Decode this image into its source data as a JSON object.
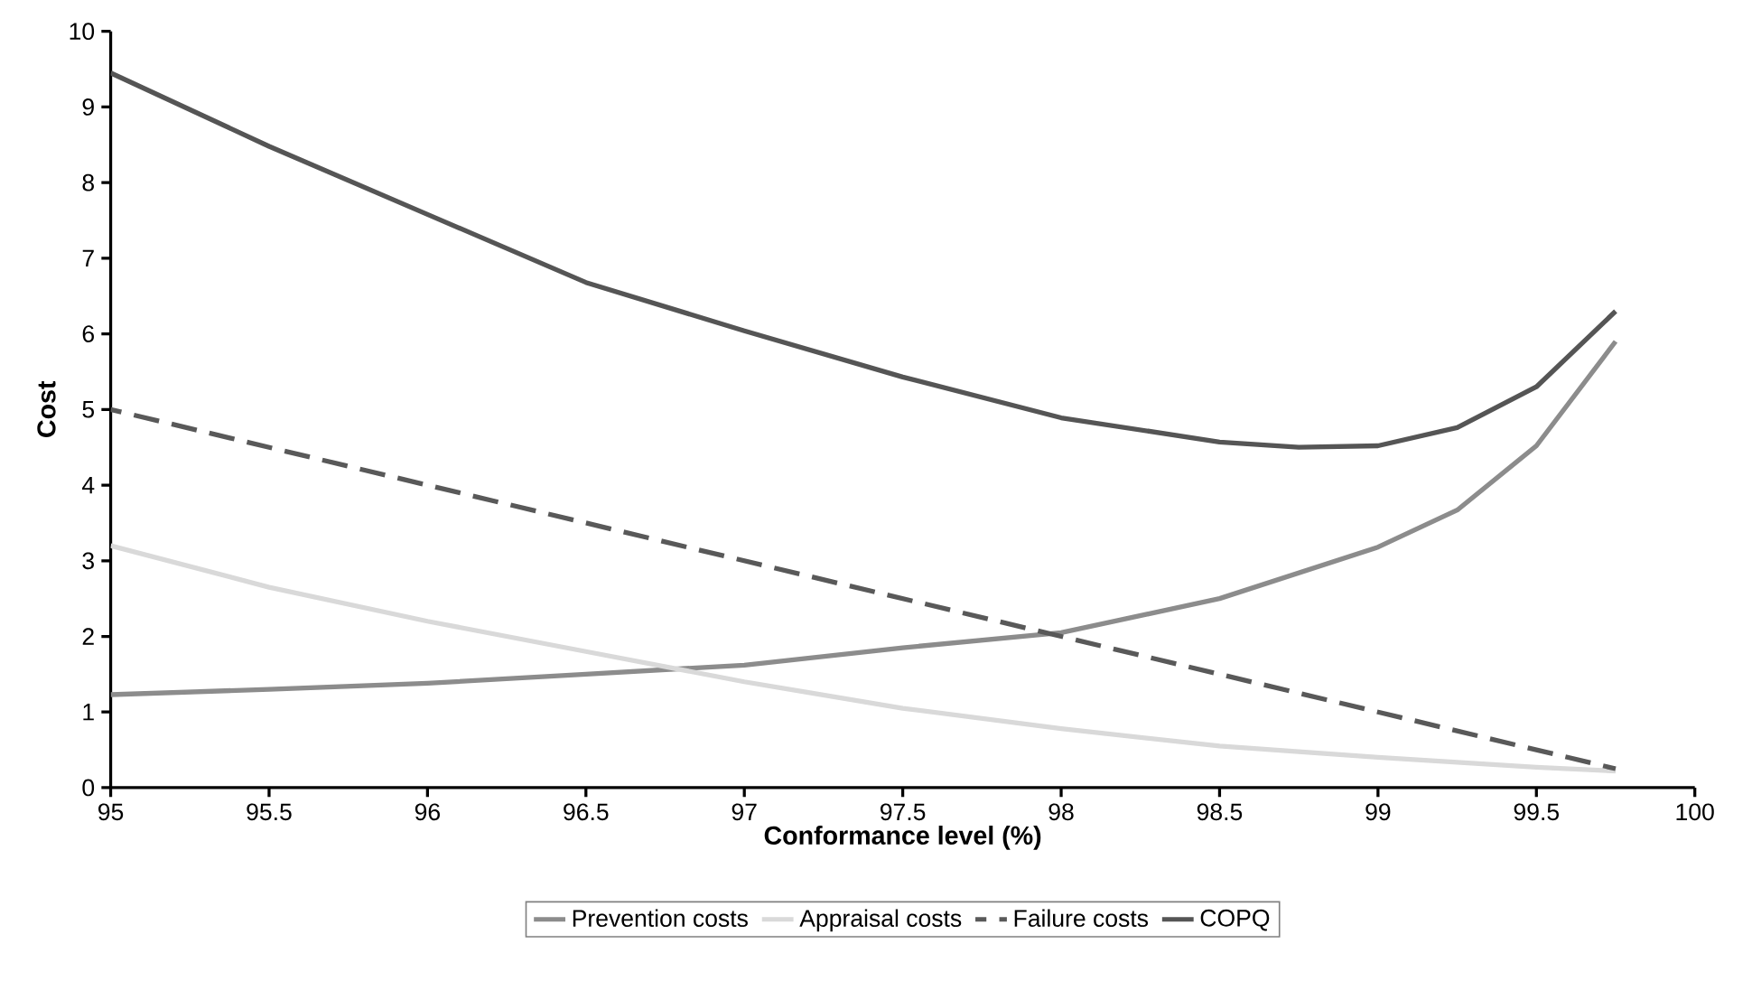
{
  "chart_data": {
    "type": "line",
    "xlabel": "Conformance level (%)",
    "ylabel": "Cost",
    "xlim": [
      95,
      100
    ],
    "xticks": [
      95,
      95.5,
      96,
      96.5,
      97,
      97.5,
      98,
      98.5,
      99,
      99.5,
      100
    ],
    "ylim": [
      0,
      10
    ],
    "yticks": [
      0,
      1,
      2,
      3,
      4,
      5,
      6,
      7,
      8,
      9,
      10
    ],
    "legend": "bottom",
    "grid": false,
    "marker": "none",
    "series": [
      {
        "name": "Prevention costs",
        "color": "#8c8c8c",
        "line_style": "solid",
        "x": [
          95,
          95.5,
          96,
          96.5,
          97,
          97.5,
          98,
          98.5,
          99,
          99.25,
          99.5,
          99.75
        ],
        "values": [
          1.23,
          1.3,
          1.38,
          1.5,
          1.62,
          1.85,
          2.05,
          2.5,
          3.18,
          3.67,
          4.52,
          5.9
        ]
      },
      {
        "name": "Appraisal costs",
        "color": "#d9d9d9",
        "line_style": "solid",
        "x": [
          95,
          95.5,
          96,
          96.5,
          97,
          97.5,
          98,
          98.5,
          99,
          99.5,
          99.75
        ],
        "values": [
          3.2,
          2.65,
          2.2,
          1.8,
          1.4,
          1.05,
          0.78,
          0.55,
          0.4,
          0.27,
          0.22
        ]
      },
      {
        "name": "Failure costs",
        "color": "#595959",
        "line_style": "dashed",
        "x": [
          95,
          96,
          97,
          98,
          99,
          99.75
        ],
        "values": [
          5,
          4,
          3,
          2,
          1,
          0.25
        ]
      },
      {
        "name": "COPQ",
        "color": "#555555",
        "line_style": "solid",
        "x": [
          95,
          95.5,
          96,
          96.5,
          97,
          97.5,
          98,
          98.5,
          98.75,
          99,
          99.25,
          99.5,
          99.75
        ],
        "values": [
          9.45,
          8.48,
          7.58,
          6.68,
          6.04,
          5.43,
          4.89,
          4.57,
          4.5,
          4.52,
          4.76,
          5.3,
          6.3
        ]
      }
    ]
  }
}
